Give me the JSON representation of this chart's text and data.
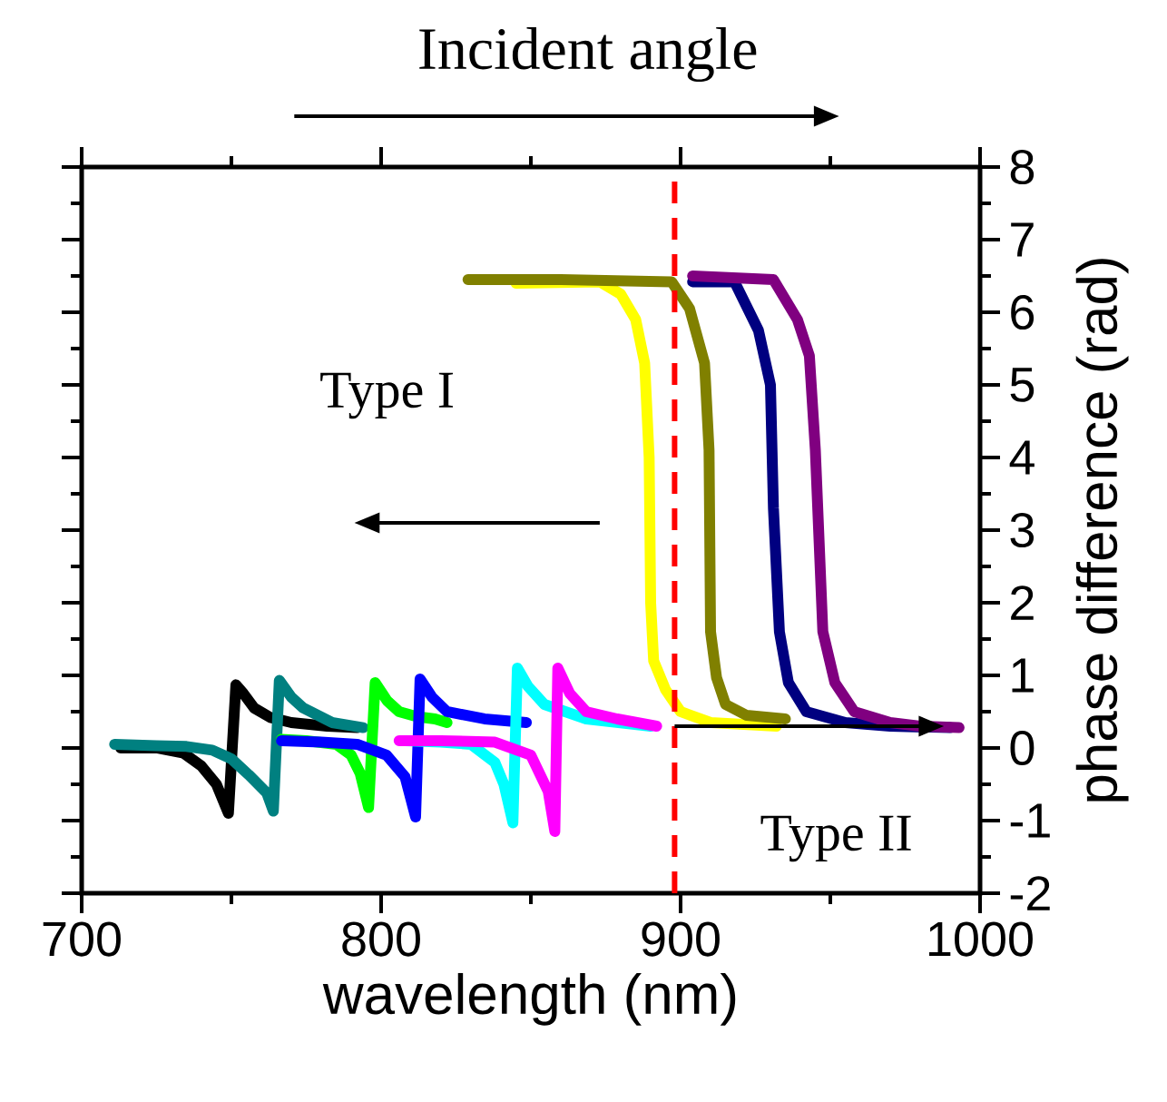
{
  "chart_data": {
    "type": "line",
    "xlabel": "wavelength (nm)",
    "ylabel": "phase difference (rad)",
    "annotations": [
      "Incident angle",
      "Type I",
      "Type II"
    ],
    "xlim": [
      700,
      1000
    ],
    "xticks": [
      700,
      800,
      900,
      1000
    ],
    "ylim": [
      -2,
      8
    ],
    "yticks": [
      -2,
      -1,
      0,
      1,
      2,
      3,
      4,
      5,
      6,
      7,
      8
    ],
    "ref_lines": [
      {
        "axis": "x",
        "value": 898,
        "color": "#ff0000",
        "line_style": "dashed"
      }
    ],
    "series": [
      {
        "color": "#000000",
        "x": [
          713,
          725,
          734,
          740,
          745,
          749,
          751.5,
          754,
          757.6,
          763,
          770,
          782,
          792
        ],
        "values": [
          0,
          0,
          -0.07,
          -0.25,
          -0.5,
          -0.9,
          0.87,
          0.75,
          0.55,
          0.42,
          0.35,
          0.3,
          0.28
        ]
      },
      {
        "color": "#008080",
        "x": [
          711,
          725,
          735,
          743.6,
          750,
          755.8,
          761.8,
          764,
          766,
          770,
          774,
          783.6,
          794
        ],
        "values": [
          0.05,
          0.03,
          0.02,
          -0.03,
          -0.15,
          -0.37,
          -0.62,
          -0.87,
          0.93,
          0.7,
          0.55,
          0.35,
          0.28
        ]
      },
      {
        "color": "#00ff00",
        "x": [
          766.7,
          775,
          785,
          790,
          793,
          795.8,
          798,
          802,
          806,
          812,
          818,
          822
        ],
        "values": [
          0.12,
          0.1,
          0.05,
          -0.1,
          -0.35,
          -0.82,
          0.9,
          0.65,
          0.5,
          0.43,
          0.4,
          0.35
        ]
      },
      {
        "color": "#0000ff",
        "x": [
          766.7,
          780,
          792,
          801.8,
          808,
          811.5,
          813,
          817,
          822,
          834.5,
          848.5
        ],
        "values": [
          0.1,
          0.08,
          0.05,
          -0.1,
          -0.4,
          -0.95,
          0.95,
          0.7,
          0.5,
          0.4,
          0.35
        ]
      },
      {
        "color": "#00ffff",
        "x": [
          808,
          820,
          830,
          838,
          841,
          844,
          845.5,
          849,
          854.5,
          868.5,
          890
        ],
        "values": [
          0.1,
          0.08,
          0.05,
          -0.2,
          -0.5,
          -1.03,
          1.1,
          0.85,
          0.6,
          0.4,
          0.3
        ]
      },
      {
        "color": "#ff00ff",
        "x": [
          806,
          820,
          838,
          850,
          855.8,
          858,
          859,
          863,
          868.5,
          878.8,
          892
        ],
        "values": [
          0.1,
          0.1,
          0.08,
          -0.1,
          -0.6,
          -1.15,
          1.1,
          0.75,
          0.5,
          0.4,
          0.3
        ]
      },
      {
        "color": "#ffff00",
        "x": [
          845,
          873,
          880,
          885,
          888,
          889.5,
          890,
          891,
          895,
          900,
          910,
          932
        ],
        "values": [
          6.4,
          6.42,
          6.25,
          5.9,
          5.3,
          4,
          2,
          1.2,
          0.8,
          0.5,
          0.35,
          0.3
        ]
      },
      {
        "color": "#808000",
        "x": [
          829,
          860,
          897,
          903,
          908,
          909.5,
          910,
          912,
          915,
          922,
          935
        ],
        "values": [
          6.45,
          6.45,
          6.42,
          6.05,
          5.3,
          4.1,
          1.6,
          0.97,
          0.6,
          0.45,
          0.4
        ]
      },
      {
        "color": "#000080",
        "x": [
          904,
          918,
          926,
          930,
          931,
          933,
          936,
          942,
          955,
          970,
          990
        ],
        "values": [
          6.42,
          6.42,
          5.75,
          5.0,
          3.3,
          1.6,
          0.9,
          0.5,
          0.35,
          0.3,
          0.28
        ]
      },
      {
        "color": "#800080",
        "x": [
          904,
          931,
          939,
          943,
          945,
          947.5,
          951.5,
          958,
          970,
          980,
          993
        ],
        "values": [
          6.5,
          6.45,
          5.9,
          5.4,
          4.1,
          1.6,
          0.9,
          0.5,
          0.35,
          0.3,
          0.28
        ]
      }
    ]
  }
}
